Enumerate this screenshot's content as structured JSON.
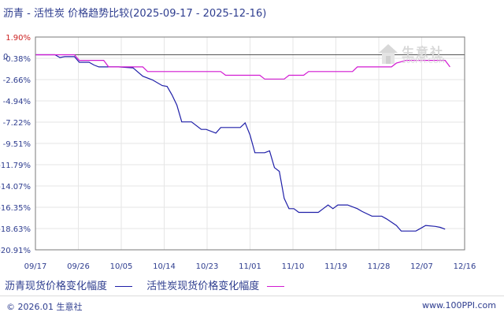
{
  "title": "沥青 - 活性炭 价格趋势比较(2025-09-17 - 2025-12-16)",
  "watermark": {
    "brand": "生意社",
    "url": "100PPI.COM"
  },
  "legend": [
    {
      "label": "沥青现货价格变化幅度",
      "color": "#1f1fa8"
    },
    {
      "label": "活性炭现货价格变化幅度",
      "color": "#d21ad2"
    }
  ],
  "footer": {
    "copyright": "© 2026.01 生意社",
    "site": "www.100PPI.com"
  },
  "chart_data": {
    "type": "line",
    "y_ticks": [
      "1.90%",
      "-0.38%",
      "-2.66%",
      "-4.94%",
      "-7.22%",
      "-9.51%",
      "-11.79%",
      "-14.07%",
      "-16.35%",
      "-18.63%",
      "-20.91%"
    ],
    "y_tick_values": [
      1.9,
      -0.38,
      -2.66,
      -4.94,
      -7.22,
      -9.51,
      -11.79,
      -14.07,
      -16.35,
      -18.63,
      -20.91
    ],
    "x_ticks": [
      "09/17",
      "09/26",
      "10/05",
      "10/14",
      "10/23",
      "11/01",
      "11/10",
      "11/19",
      "11/28",
      "12/07",
      "12/16"
    ],
    "zero_label": "0",
    "ylim": [
      -20.91,
      1.9
    ],
    "grid": true,
    "series": [
      {
        "name": "沥青现货价格变化幅度",
        "color": "#1f1fa8",
        "points": [
          [
            0,
            0
          ],
          [
            4,
            0
          ],
          [
            5,
            -0.3
          ],
          [
            6,
            -0.2
          ],
          [
            8,
            -0.2
          ],
          [
            9,
            -0.8
          ],
          [
            11,
            -0.8
          ],
          [
            12,
            -1.1
          ],
          [
            13,
            -1.3
          ],
          [
            17,
            -1.3
          ],
          [
            20,
            -1.4
          ],
          [
            22,
            -2.3
          ],
          [
            24,
            -2.7
          ],
          [
            26,
            -3.3
          ],
          [
            27,
            -3.4
          ],
          [
            28,
            -4.3
          ],
          [
            29,
            -5.4
          ],
          [
            30,
            -7.2
          ],
          [
            32,
            -7.2
          ],
          [
            34,
            -8.0
          ],
          [
            35,
            -8.0
          ],
          [
            37,
            -8.4
          ],
          [
            38,
            -7.8
          ],
          [
            42,
            -7.8
          ],
          [
            43,
            -7.3
          ],
          [
            44,
            -8.6
          ],
          [
            45,
            -10.5
          ],
          [
            47,
            -10.5
          ],
          [
            48,
            -10.3
          ],
          [
            49,
            -12.1
          ],
          [
            50,
            -12.5
          ],
          [
            51,
            -15.4
          ],
          [
            52,
            -16.5
          ],
          [
            53,
            -16.5
          ],
          [
            54,
            -16.9
          ],
          [
            58,
            -16.9
          ],
          [
            59,
            -16.5
          ],
          [
            60,
            -16.1
          ],
          [
            61,
            -16.5
          ],
          [
            62,
            -16.1
          ],
          [
            64,
            -16.1
          ],
          [
            66,
            -16.5
          ],
          [
            67,
            -16.8
          ],
          [
            69,
            -17.3
          ],
          [
            71,
            -17.3
          ],
          [
            72,
            -17.6
          ],
          [
            74,
            -18.3
          ],
          [
            75,
            -18.9
          ],
          [
            78,
            -18.9
          ],
          [
            79,
            -18.6
          ],
          [
            80,
            -18.3
          ],
          [
            82,
            -18.4
          ],
          [
            83,
            -18.5
          ],
          [
            84,
            -18.7
          ]
        ]
      },
      {
        "name": "活性炭现货价格变化幅度",
        "color": "#d21ad2",
        "points": [
          [
            0,
            0
          ],
          [
            8,
            0
          ],
          [
            9,
            -0.6
          ],
          [
            14,
            -0.6
          ],
          [
            15,
            -1.3
          ],
          [
            22,
            -1.3
          ],
          [
            23,
            -1.8
          ],
          [
            38,
            -1.8
          ],
          [
            39,
            -2.2
          ],
          [
            46,
            -2.2
          ],
          [
            47,
            -2.6
          ],
          [
            51,
            -2.6
          ],
          [
            52,
            -2.2
          ],
          [
            55,
            -2.2
          ],
          [
            56,
            -1.8
          ],
          [
            65,
            -1.8
          ],
          [
            66,
            -1.3
          ],
          [
            73,
            -1.3
          ],
          [
            74,
            -0.9
          ],
          [
            76,
            -0.6
          ],
          [
            84,
            -0.6
          ],
          [
            85,
            -1.3
          ]
        ]
      }
    ]
  }
}
